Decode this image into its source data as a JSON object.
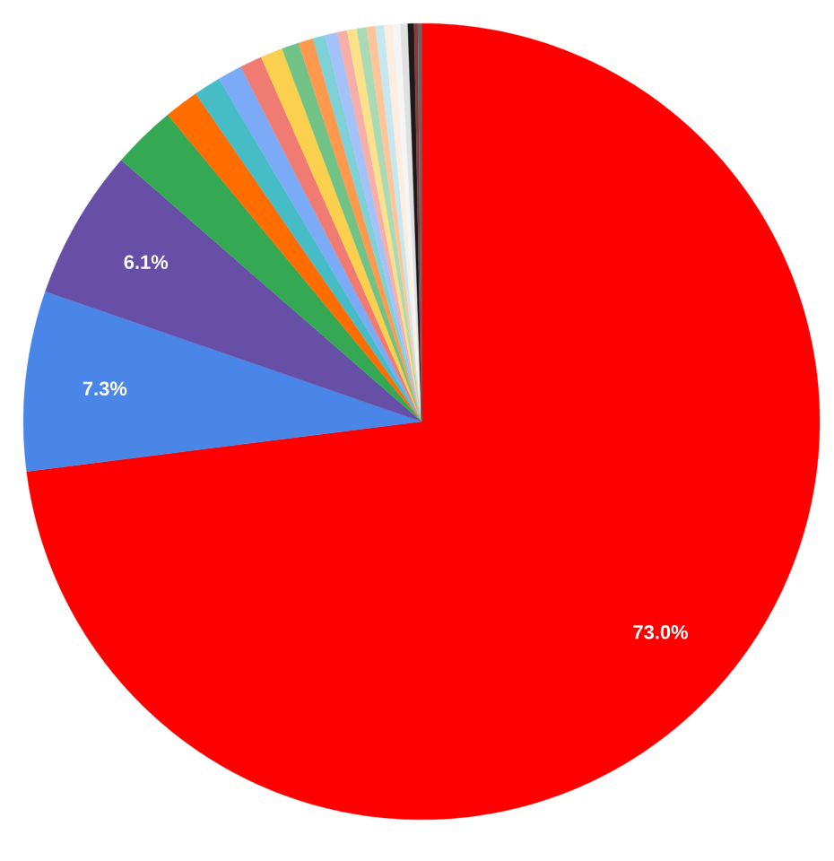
{
  "chart_data": {
    "type": "pie",
    "categories": [
      null,
      null,
      null,
      null,
      null,
      null,
      null,
      null,
      null,
      null,
      null,
      null,
      null,
      null,
      null,
      null,
      null,
      null,
      null,
      null,
      null,
      null,
      null,
      null
    ],
    "values": [
      73.0,
      7.3,
      6.1,
      2.6,
      1.4,
      1.1,
      1.0,
      0.9,
      0.9,
      0.7,
      0.6,
      0.5,
      0.5,
      0.4,
      0.4,
      0.4,
      0.35,
      0.35,
      0.35,
      0.3,
      0.3,
      0.25,
      0.15,
      0.15
    ],
    "colors": [
      "#ff0000",
      "#4a86e8",
      "#674ea7",
      "#34a853",
      "#ff6d01",
      "#46bdc6",
      "#7baaf7",
      "#f07b72",
      "#fcd04f",
      "#71c287",
      "#ff994d",
      "#7ed1d7",
      "#a3c2f9",
      "#f6aea9",
      "#fde18a",
      "#a8dab5",
      "#ffc599",
      "#c5e8f0",
      "#fbeee0",
      "#f5f5f5",
      "#e0e0e0",
      "#1a1a1a",
      "#8b3a3a",
      "#666666"
    ],
    "value_labels": [
      "73.0%",
      "7.3%",
      "6.1%",
      null,
      null,
      null,
      null,
      null,
      null,
      null,
      null,
      null,
      null,
      null,
      null,
      null,
      null,
      null,
      null,
      null,
      null,
      null,
      null,
      null
    ]
  }
}
